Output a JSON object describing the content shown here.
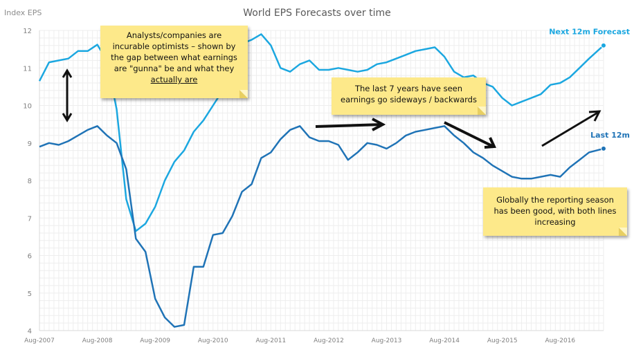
{
  "chart_data": {
    "type": "line",
    "title": "World EPS Forecasts over time",
    "ylabel": "Index EPS",
    "xlabel": "",
    "ylim": [
      4,
      12
    ],
    "yticks": [
      "4",
      "5",
      "6",
      "7",
      "8",
      "9",
      "10",
      "11",
      "12"
    ],
    "xlim": [
      "2007-08",
      "2017-05"
    ],
    "xticks": [
      {
        "date": "2007-08",
        "label": "Aug-2007"
      },
      {
        "date": "2008-08",
        "label": "Aug-2008"
      },
      {
        "date": "2009-08",
        "label": "Aug-2009"
      },
      {
        "date": "2010-08",
        "label": "Aug-2010"
      },
      {
        "date": "2011-08",
        "label": "Aug-2011"
      },
      {
        "date": "2012-08",
        "label": "Aug-2012"
      },
      {
        "date": "2013-08",
        "label": "Aug-2013"
      },
      {
        "date": "2014-08",
        "label": "Aug-2014"
      },
      {
        "date": "2015-08",
        "label": "Aug-2015"
      },
      {
        "date": "2016-08",
        "label": "Aug-2016"
      }
    ],
    "grid": true,
    "series": [
      {
        "name": "Next 12m Forecast",
        "color": "#1ba7e0",
        "points": [
          [
            "2007-08",
            10.65
          ],
          [
            "2007-10",
            11.15
          ],
          [
            "2007-12",
            11.2
          ],
          [
            "2008-02",
            11.25
          ],
          [
            "2008-04",
            11.45
          ],
          [
            "2008-06",
            11.45
          ],
          [
            "2008-08",
            11.62
          ],
          [
            "2008-10",
            11.2
          ],
          [
            "2008-12",
            9.9
          ],
          [
            "2009-02",
            7.5
          ],
          [
            "2009-04",
            6.65
          ],
          [
            "2009-06",
            6.85
          ],
          [
            "2009-08",
            7.3
          ],
          [
            "2009-10",
            8.0
          ],
          [
            "2009-12",
            8.5
          ],
          [
            "2010-02",
            8.8
          ],
          [
            "2010-04",
            9.3
          ],
          [
            "2010-06",
            9.6
          ],
          [
            "2010-08",
            10.0
          ],
          [
            "2010-10",
            10.4
          ],
          [
            "2010-12",
            11.0
          ],
          [
            "2011-02",
            11.65
          ],
          [
            "2011-04",
            11.75
          ],
          [
            "2011-06",
            11.9
          ],
          [
            "2011-08",
            11.6
          ],
          [
            "2011-10",
            11.0
          ],
          [
            "2011-12",
            10.9
          ],
          [
            "2012-02",
            11.1
          ],
          [
            "2012-04",
            11.2
          ],
          [
            "2012-06",
            10.95
          ],
          [
            "2012-08",
            10.95
          ],
          [
            "2012-10",
            11.0
          ],
          [
            "2012-12",
            10.95
          ],
          [
            "2013-02",
            10.9
          ],
          [
            "2013-04",
            10.95
          ],
          [
            "2013-06",
            11.1
          ],
          [
            "2013-08",
            11.15
          ],
          [
            "2013-10",
            11.25
          ],
          [
            "2013-12",
            11.35
          ],
          [
            "2014-02",
            11.45
          ],
          [
            "2014-04",
            11.5
          ],
          [
            "2014-06",
            11.55
          ],
          [
            "2014-08",
            11.3
          ],
          [
            "2014-10",
            10.9
          ],
          [
            "2014-12",
            10.75
          ],
          [
            "2015-02",
            10.8
          ],
          [
            "2015-04",
            10.6
          ],
          [
            "2015-06",
            10.5
          ],
          [
            "2015-08",
            10.2
          ],
          [
            "2015-10",
            10.0
          ],
          [
            "2015-12",
            10.1
          ],
          [
            "2016-02",
            10.2
          ],
          [
            "2016-04",
            10.3
          ],
          [
            "2016-06",
            10.55
          ],
          [
            "2016-08",
            10.6
          ],
          [
            "2016-10",
            10.75
          ],
          [
            "2016-12",
            11.0
          ],
          [
            "2017-02",
            11.25
          ],
          [
            "2017-05",
            11.6
          ]
        ]
      },
      {
        "name": "Last 12m",
        "color": "#1f73b6",
        "points": [
          [
            "2007-08",
            8.9
          ],
          [
            "2007-10",
            9.0
          ],
          [
            "2007-12",
            8.95
          ],
          [
            "2008-02",
            9.05
          ],
          [
            "2008-04",
            9.2
          ],
          [
            "2008-06",
            9.35
          ],
          [
            "2008-08",
            9.45
          ],
          [
            "2008-10",
            9.2
          ],
          [
            "2008-12",
            9.0
          ],
          [
            "2009-02",
            8.3
          ],
          [
            "2009-04",
            6.45
          ],
          [
            "2009-06",
            6.1
          ],
          [
            "2009-08",
            4.85
          ],
          [
            "2009-10",
            4.35
          ],
          [
            "2009-12",
            4.1
          ],
          [
            "2010-02",
            4.15
          ],
          [
            "2010-04",
            5.7
          ],
          [
            "2010-06",
            5.7
          ],
          [
            "2010-08",
            6.55
          ],
          [
            "2010-10",
            6.6
          ],
          [
            "2010-12",
            7.05
          ],
          [
            "2011-02",
            7.7
          ],
          [
            "2011-04",
            7.9
          ],
          [
            "2011-06",
            8.6
          ],
          [
            "2011-08",
            8.75
          ],
          [
            "2011-10",
            9.1
          ],
          [
            "2011-12",
            9.35
          ],
          [
            "2012-02",
            9.45
          ],
          [
            "2012-04",
            9.15
          ],
          [
            "2012-06",
            9.05
          ],
          [
            "2012-08",
            9.05
          ],
          [
            "2012-10",
            8.95
          ],
          [
            "2012-12",
            8.55
          ],
          [
            "2013-02",
            8.75
          ],
          [
            "2013-04",
            9.0
          ],
          [
            "2013-06",
            8.95
          ],
          [
            "2013-08",
            8.85
          ],
          [
            "2013-10",
            9.0
          ],
          [
            "2013-12",
            9.2
          ],
          [
            "2014-02",
            9.3
          ],
          [
            "2014-04",
            9.35
          ],
          [
            "2014-06",
            9.4
          ],
          [
            "2014-08",
            9.45
          ],
          [
            "2014-10",
            9.2
          ],
          [
            "2014-12",
            9.0
          ],
          [
            "2015-02",
            8.75
          ],
          [
            "2015-04",
            8.6
          ],
          [
            "2015-06",
            8.4
          ],
          [
            "2015-08",
            8.25
          ],
          [
            "2015-10",
            8.1
          ],
          [
            "2015-12",
            8.05
          ],
          [
            "2016-02",
            8.05
          ],
          [
            "2016-04",
            8.1
          ],
          [
            "2016-06",
            8.15
          ],
          [
            "2016-08",
            8.1
          ],
          [
            "2016-10",
            8.35
          ],
          [
            "2016-12",
            8.55
          ],
          [
            "2017-02",
            8.75
          ],
          [
            "2017-05",
            8.85
          ]
        ]
      }
    ],
    "labels": [
      {
        "text": "Next 12m Forecast",
        "series": 0
      },
      {
        "text": "Last 12m",
        "series": 1
      }
    ]
  },
  "annotations": {
    "optimists": {
      "line1": "Analysts/companies are",
      "line2": "incurable optimists – shown by",
      "line3": "the gap between what earnings",
      "line4": "are \"gunna\" be and what they",
      "line5": "actually are"
    },
    "sideways": {
      "line1": "The last 7 years have seen",
      "line2": "earnings go sideways / backwards"
    },
    "reporting": {
      "line1": "Globally the reporting season",
      "line2": "has been good, with both lines",
      "line3": "increasing"
    }
  }
}
